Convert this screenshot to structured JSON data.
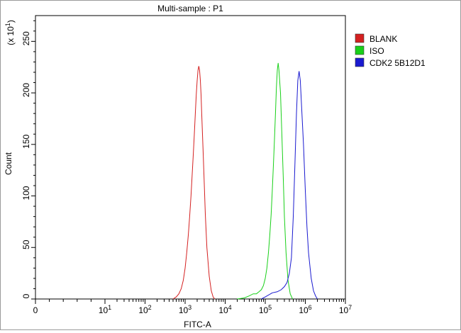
{
  "chart_data": {
    "type": "line",
    "title": "Multi-sample : P1",
    "xlabel": "FITC-A",
    "ylabel": "Count",
    "y_multiplier": {
      "base": "(x 10",
      "exp": "1",
      "close": ")"
    },
    "x_scale": "log",
    "xlim": [
      0,
      10000000
    ],
    "ylim": [
      0,
      275
    ],
    "x_ticks": [
      {
        "base": "0",
        "exp": "",
        "value": 0
      },
      {
        "base": "10",
        "exp": "1",
        "value": 10
      },
      {
        "base": "10",
        "exp": "2",
        "value": 100
      },
      {
        "base": "10",
        "exp": "3",
        "value": 1000
      },
      {
        "base": "10",
        "exp": "4",
        "value": 10000
      },
      {
        "base": "10",
        "exp": "5",
        "value": 100000
      },
      {
        "base": "10",
        "exp": "6",
        "value": 1000000
      },
      {
        "base": "10",
        "exp": "7",
        "value": 10000000
      }
    ],
    "y_ticks": [
      "0",
      "50",
      "100",
      "150",
      "200",
      "250"
    ],
    "y_tick_values": [
      0,
      50,
      100,
      150,
      200,
      250
    ],
    "grid": false,
    "legend_position": "top-right",
    "series": [
      {
        "name": "BLANK",
        "color": "#d42020",
        "points": [
          [
            500,
            0
          ],
          [
            600,
            2
          ],
          [
            700,
            5
          ],
          [
            800,
            10
          ],
          [
            900,
            18
          ],
          [
            1000,
            30
          ],
          [
            1100,
            45
          ],
          [
            1200,
            62
          ],
          [
            1300,
            80
          ],
          [
            1400,
            100
          ],
          [
            1500,
            120
          ],
          [
            1600,
            140
          ],
          [
            1700,
            160
          ],
          [
            1800,
            180
          ],
          [
            1900,
            198
          ],
          [
            2000,
            212
          ],
          [
            2100,
            222
          ],
          [
            2200,
            226
          ],
          [
            2300,
            222
          ],
          [
            2400,
            212
          ],
          [
            2500,
            198
          ],
          [
            2600,
            180
          ],
          [
            2800,
            145
          ],
          [
            3000,
            112
          ],
          [
            3200,
            82
          ],
          [
            3500,
            50
          ],
          [
            4000,
            22
          ],
          [
            4500,
            8
          ],
          [
            5000,
            2
          ],
          [
            5500,
            0
          ]
        ]
      },
      {
        "name": "ISO",
        "color": "#19d019",
        "points": [
          [
            20000,
            0
          ],
          [
            30000,
            1
          ],
          [
            40000,
            3
          ],
          [
            50000,
            5
          ],
          [
            60000,
            5
          ],
          [
            70000,
            7
          ],
          [
            80000,
            9
          ],
          [
            90000,
            13
          ],
          [
            100000,
            20
          ],
          [
            110000,
            30
          ],
          [
            120000,
            45
          ],
          [
            130000,
            62
          ],
          [
            140000,
            82
          ],
          [
            150000,
            105
          ],
          [
            160000,
            130
          ],
          [
            170000,
            155
          ],
          [
            180000,
            180
          ],
          [
            190000,
            205
          ],
          [
            200000,
            222
          ],
          [
            210000,
            229
          ],
          [
            220000,
            222
          ],
          [
            240000,
            200
          ],
          [
            260000,
            160
          ],
          [
            280000,
            120
          ],
          [
            300000,
            80
          ],
          [
            330000,
            45
          ],
          [
            370000,
            18
          ],
          [
            420000,
            5
          ],
          [
            480000,
            0
          ]
        ]
      },
      {
        "name": "CDK2 5B12D1",
        "color": "#1a1ad0",
        "points": [
          [
            80000,
            0
          ],
          [
            100000,
            2
          ],
          [
            150000,
            6
          ],
          [
            200000,
            7
          ],
          [
            250000,
            9
          ],
          [
            300000,
            12
          ],
          [
            350000,
            16
          ],
          [
            400000,
            25
          ],
          [
            450000,
            40
          ],
          [
            500000,
            80
          ],
          [
            550000,
            130
          ],
          [
            600000,
            180
          ],
          [
            650000,
            212
          ],
          [
            700000,
            221
          ],
          [
            750000,
            212
          ],
          [
            800000,
            190
          ],
          [
            900000,
            150
          ],
          [
            1000000,
            105
          ],
          [
            1100000,
            70
          ],
          [
            1200000,
            45
          ],
          [
            1400000,
            20
          ],
          [
            1600000,
            8
          ],
          [
            1800000,
            3
          ],
          [
            2000000,
            0
          ]
        ]
      }
    ]
  }
}
